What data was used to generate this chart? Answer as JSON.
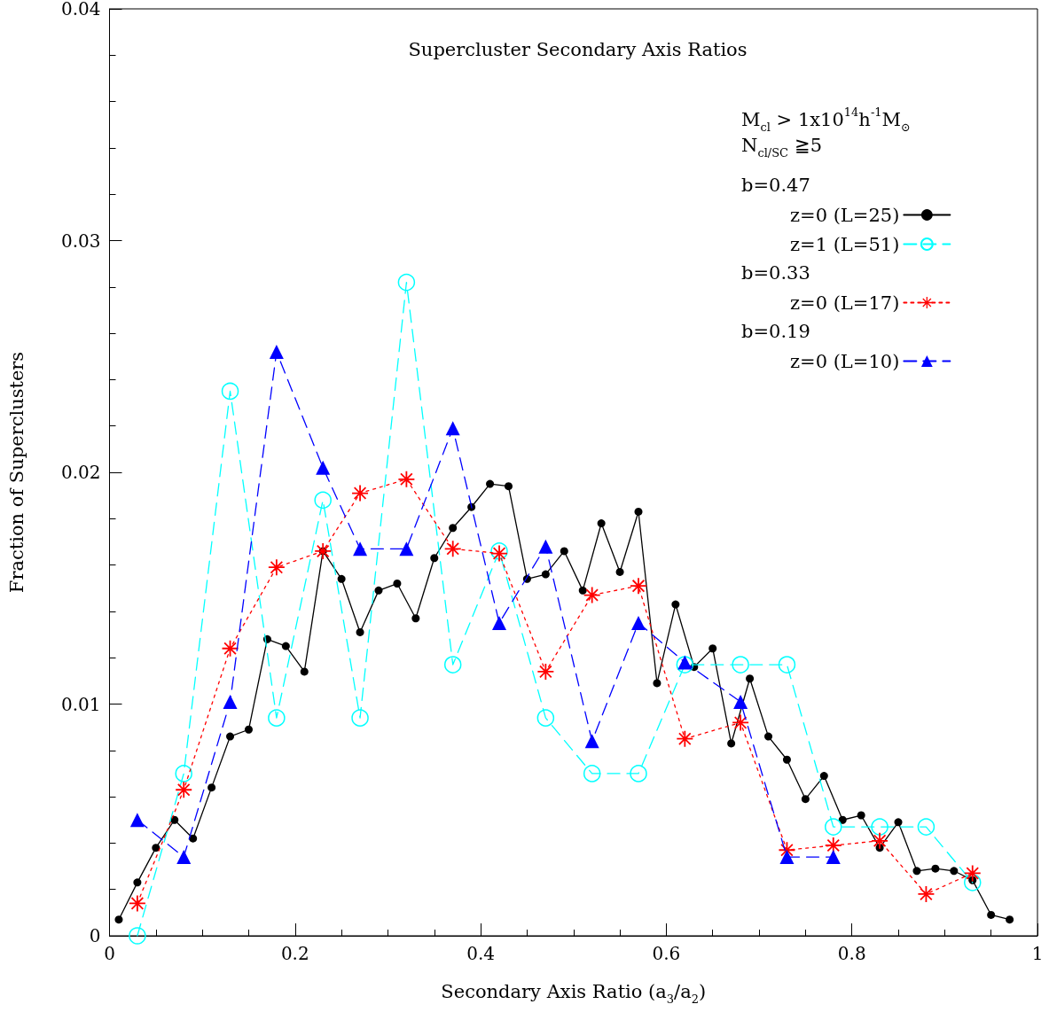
{
  "chart_data": {
    "type": "line",
    "title": "Supercluster Secondary Axis Ratios",
    "xlabel": "Secondary Axis Ratio (a$_{3}$/a$_{2}$)",
    "ylabel": "Fraction of Superclusters",
    "annotations": [
      "M$_{cl}$ > 1x10$^{14}$h$^{-1}$M$_{⊙}$",
      "N$_{cl/SC}$ ≧5",
      "b=0.47",
      "b=0.33",
      "b=0.19"
    ],
    "xlim": [
      0,
      1
    ],
    "xticks": [
      0,
      0.2,
      0.4,
      0.6,
      0.8,
      1
    ],
    "ylim": [
      0,
      0.04
    ],
    "yticks": [
      0,
      0.01,
      0.02,
      0.03,
      0.04
    ],
    "grid": false,
    "legend": "top right",
    "series": [
      {
        "name": "z=0 (L=25)",
        "color": "#000000",
        "marker": "circle",
        "line_style": "solid",
        "x": [
          0.01,
          0.03,
          0.05,
          0.07,
          0.09,
          0.11,
          0.13,
          0.15,
          0.17,
          0.19,
          0.21,
          0.23,
          0.25,
          0.27,
          0.29,
          0.31,
          0.33,
          0.35,
          0.37,
          0.39,
          0.41,
          0.43,
          0.45,
          0.47,
          0.49,
          0.51,
          0.53,
          0.55,
          0.57,
          0.59,
          0.61,
          0.63,
          0.65,
          0.67,
          0.69,
          0.71,
          0.73,
          0.75,
          0.77,
          0.79,
          0.81,
          0.83,
          0.85,
          0.87,
          0.89,
          0.91,
          0.93,
          0.95,
          0.97
        ],
        "values": [
          0.0007,
          0.0023,
          0.0038,
          0.005,
          0.0042,
          0.0064,
          0.0086,
          0.0089,
          0.0128,
          0.0125,
          0.0114,
          0.0166,
          0.0154,
          0.0131,
          0.0149,
          0.0152,
          0.0137,
          0.0163,
          0.0176,
          0.0185,
          0.0195,
          0.0194,
          0.0154,
          0.0156,
          0.0166,
          0.0149,
          0.0178,
          0.0157,
          0.0183,
          0.0109,
          0.0143,
          0.0116,
          0.0124,
          0.0083,
          0.0111,
          0.0086,
          0.0076,
          0.0059,
          0.0069,
          0.005,
          0.0052,
          0.0038,
          0.0049,
          0.0028,
          0.0029,
          0.0028,
          0.0024,
          0.0009,
          0.0007
        ]
      },
      {
        "name": "z=1 (L=51)",
        "color": "#00ffff",
        "marker": "circle",
        "line_style": "dashed",
        "x": [
          0.03,
          0.08,
          0.13,
          0.18,
          0.23,
          0.27,
          0.32,
          0.37,
          0.42,
          0.47,
          0.52,
          0.57,
          0.62,
          0.68,
          0.73,
          0.78,
          0.83,
          0.88,
          0.93
        ],
        "values": [
          0,
          0.007,
          0.0235,
          0.0094,
          0.0188,
          0.0094,
          0.0282,
          0.0117,
          0.0166,
          0.0094,
          0.007,
          0.007,
          0.0117,
          0.0117,
          0.0117,
          0.0047,
          0.0047,
          0.0047,
          0.0023
        ]
      },
      {
        "name": "z=0 (L=17)",
        "color": "#ff0000",
        "marker": "star",
        "line_style": "dotted",
        "x": [
          0.03,
          0.08,
          0.13,
          0.18,
          0.23,
          0.27,
          0.32,
          0.37,
          0.42,
          0.47,
          0.52,
          0.57,
          0.62,
          0.68,
          0.73,
          0.78,
          0.83,
          0.88,
          0.93
        ],
        "values": [
          0.0014,
          0.0063,
          0.0124,
          0.0159,
          0.0166,
          0.0191,
          0.0197,
          0.0167,
          0.0165,
          0.0114,
          0.0147,
          0.0151,
          0.0085,
          0.0092,
          0.0037,
          0.0039,
          0.0041,
          0.0018,
          0.0027
        ]
      },
      {
        "name": "z=0 (L=10)",
        "color": "#0000ff",
        "marker": "triangle",
        "line_style": "dashed",
        "x": [
          0.03,
          0.08,
          0.13,
          0.18,
          0.23,
          0.27,
          0.32,
          0.37,
          0.42,
          0.47,
          0.52,
          0.57,
          0.62,
          0.68,
          0.73,
          0.78
        ],
        "values": [
          0.005,
          0.0034,
          0.0101,
          0.0252,
          0.0202,
          0.0167,
          0.0167,
          0.0219,
          0.0135,
          0.0168,
          0.0084,
          0.0135,
          0.0118,
          0.0101,
          0.0034,
          0.0034
        ]
      }
    ]
  }
}
